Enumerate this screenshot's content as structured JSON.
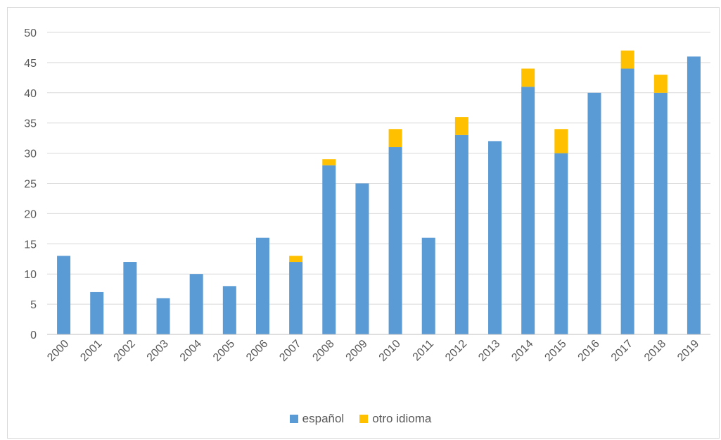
{
  "chart_data": {
    "type": "bar",
    "stacked": true,
    "categories": [
      "2000",
      "2001",
      "2002",
      "2003",
      "2004",
      "2005",
      "2006",
      "2007",
      "2008",
      "2009",
      "2010",
      "2011",
      "2012",
      "2013",
      "2014",
      "2015",
      "2016",
      "2017",
      "2018",
      "2019"
    ],
    "series": [
      {
        "name": "español",
        "color": "#5b9bd5",
        "values": [
          13,
          7,
          12,
          6,
          10,
          8,
          16,
          12,
          28,
          25,
          31,
          16,
          33,
          32,
          41,
          30,
          40,
          44,
          40,
          46
        ]
      },
      {
        "name": "otro idioma",
        "color": "#ffc000",
        "values": [
          0,
          0,
          0,
          0,
          0,
          0,
          0,
          1,
          1,
          0,
          3,
          0,
          3,
          0,
          3,
          4,
          0,
          3,
          3,
          0
        ]
      }
    ],
    "ylim": [
      0,
      50
    ],
    "yticks": [
      "0",
      "5",
      "10",
      "15",
      "20",
      "25",
      "30",
      "35",
      "40",
      "45",
      "50"
    ],
    "grid": true,
    "legend_position": "bottom",
    "grid_color": "#d9d9d9",
    "axis_color": "#bfbfbf"
  }
}
